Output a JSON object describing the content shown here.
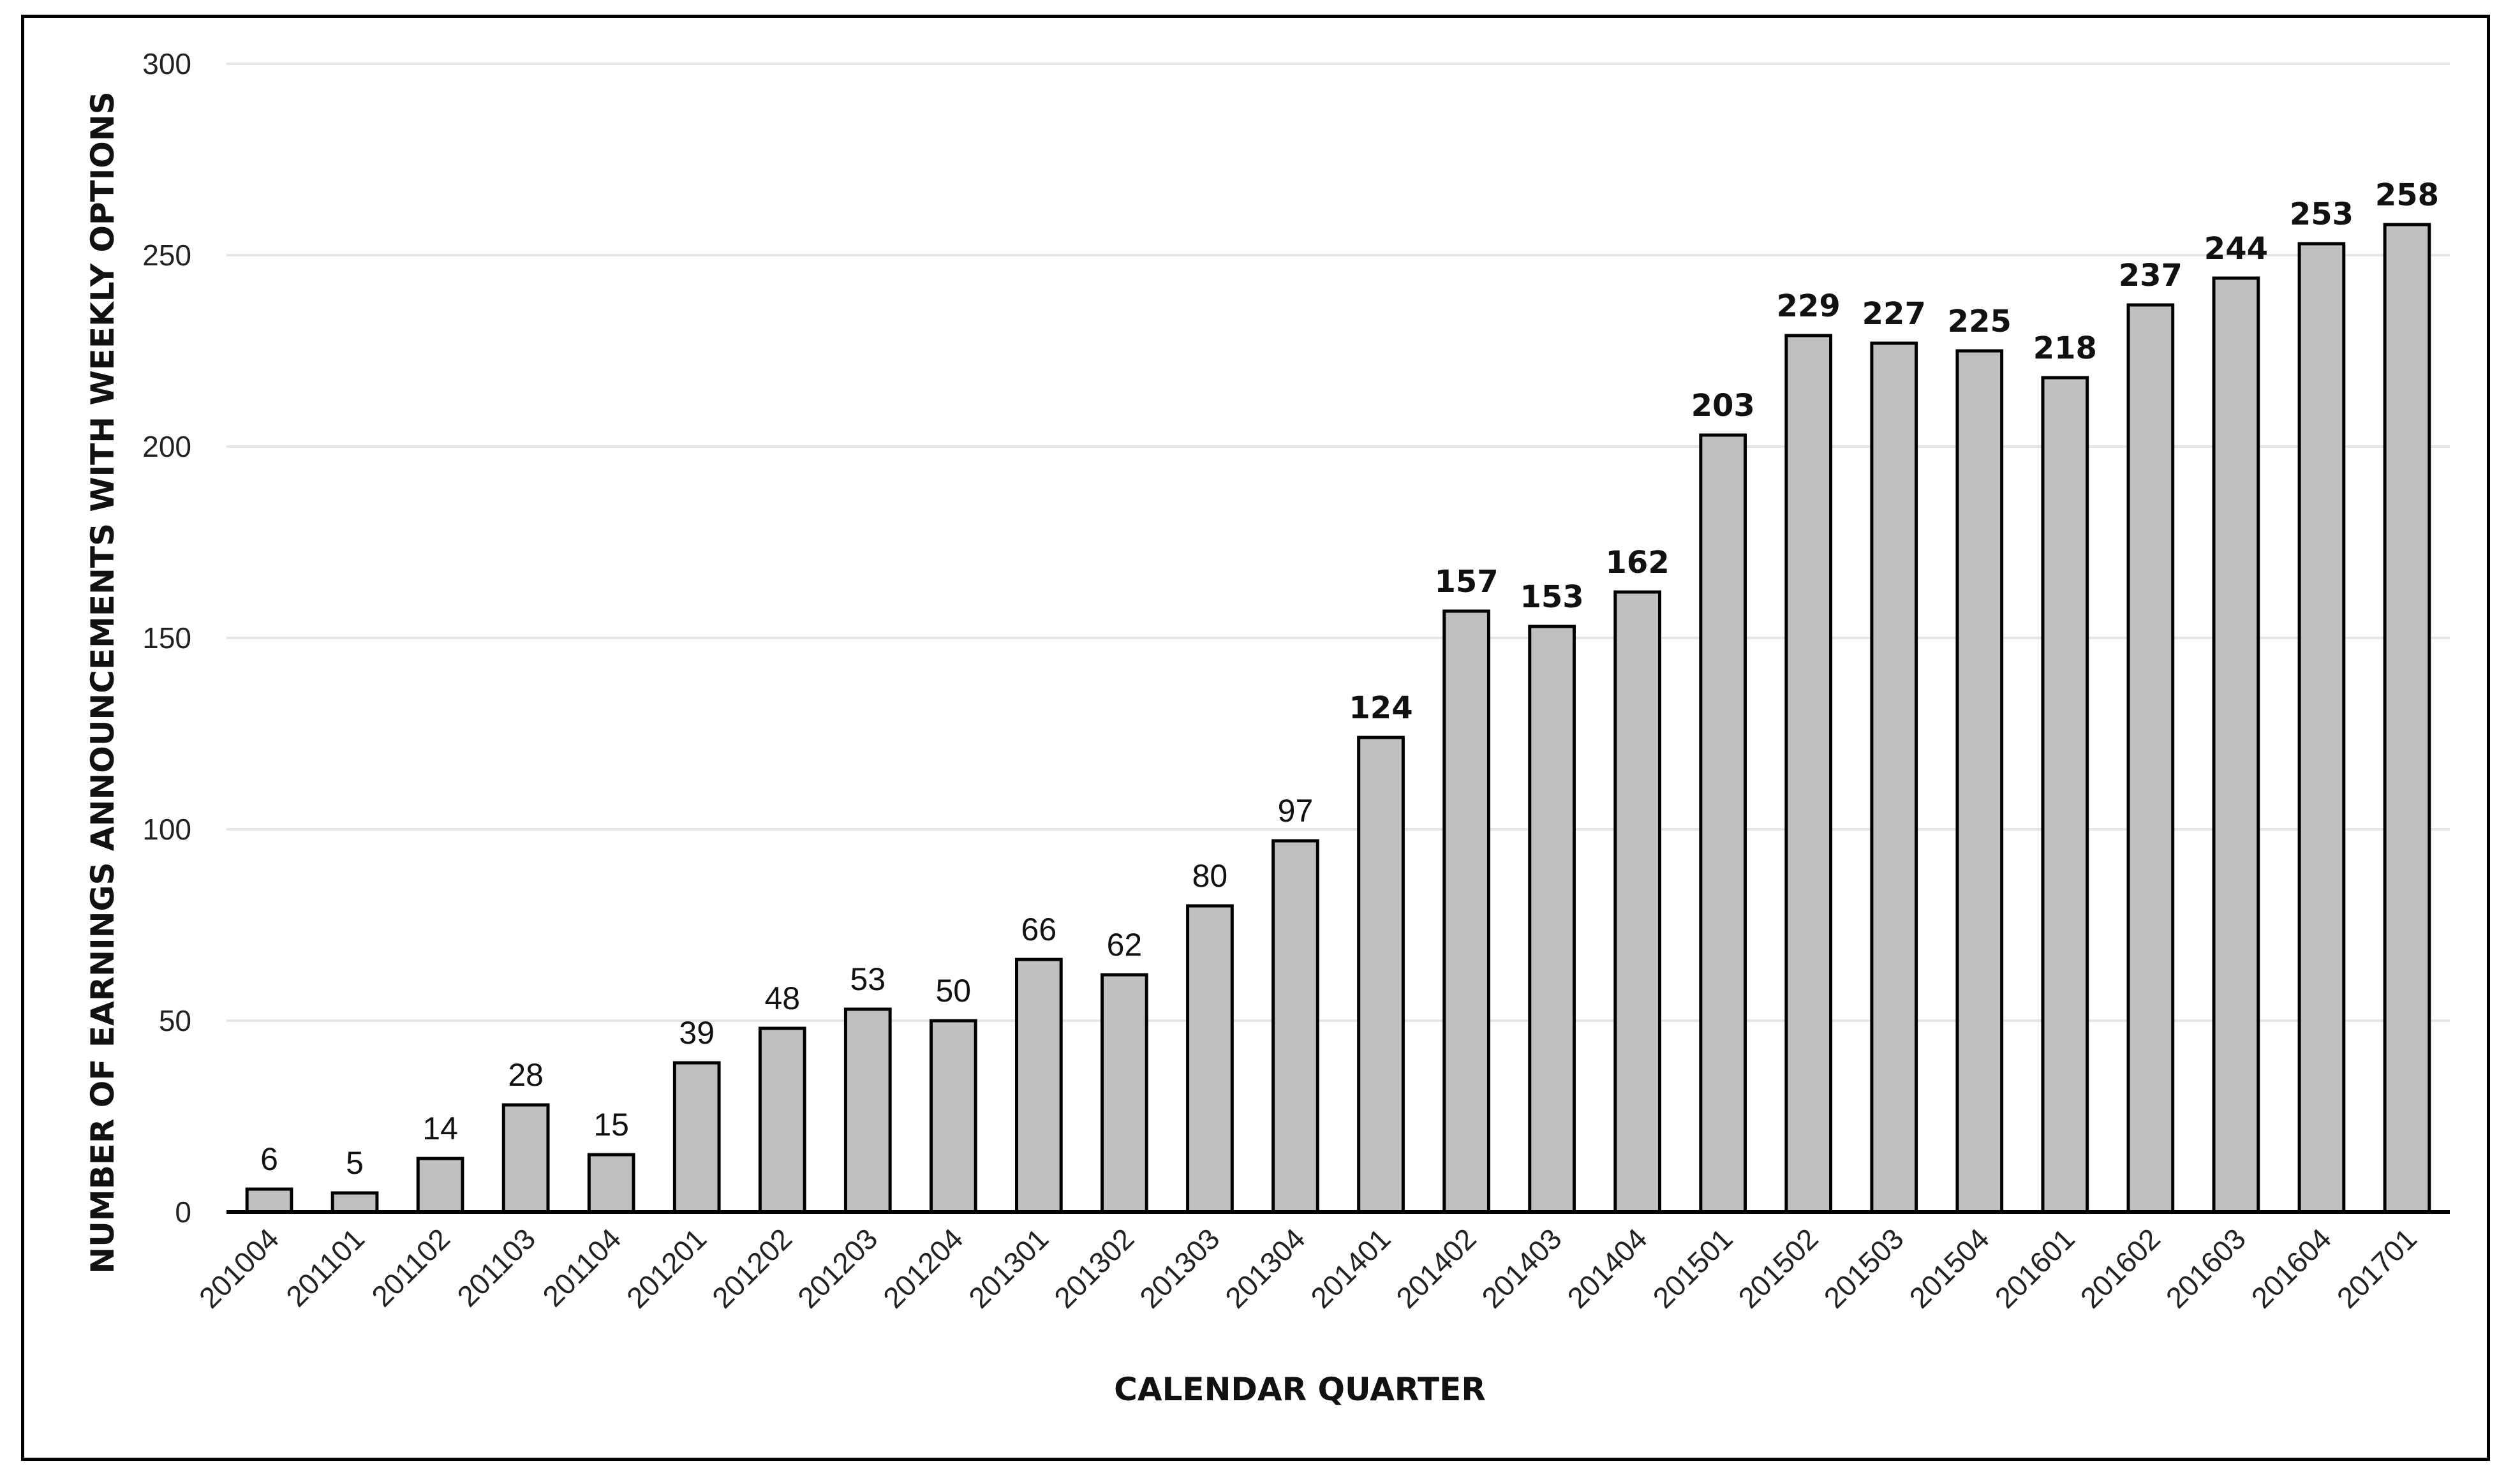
{
  "chart_data": {
    "type": "bar",
    "xlabel": "CALENDAR QUARTER",
    "ylabel": "NUMBER OF EARNINGS ANNOUNCEMENTS WITH WEEKLY OPTIONS",
    "ylim": [
      0,
      300
    ],
    "yticks": [
      "0",
      "50",
      "100",
      "150",
      "200",
      "250",
      "300"
    ],
    "grid": true,
    "legend": "none",
    "categories": [
      "201004",
      "201101",
      "201102",
      "201103",
      "201104",
      "201201",
      "201202",
      "201203",
      "201204",
      "201301",
      "201302",
      "201303",
      "201304",
      "201401",
      "201402",
      "201403",
      "201404",
      "201501",
      "201502",
      "201503",
      "201504",
      "201601",
      "201602",
      "201603",
      "201604",
      "201701"
    ],
    "values": [
      6,
      5,
      14,
      28,
      15,
      39,
      48,
      53,
      50,
      66,
      62,
      80,
      97,
      124,
      157,
      153,
      162,
      203,
      229,
      227,
      225,
      218,
      237,
      244,
      253,
      258
    ],
    "data_labels": [
      "6",
      "5",
      "14",
      "28",
      "15",
      "39",
      "48",
      "53",
      "50",
      "66",
      "62",
      "80",
      "97",
      "124",
      "157",
      "153",
      "162",
      "203",
      "229",
      "227",
      "225",
      "218",
      "237",
      "244",
      "253",
      "258"
    ],
    "bold_labels_from_value": 100,
    "colors": {
      "bar_fill": "#c0c0c0",
      "bar_stroke": "#000000",
      "grid": "#e6e6e6",
      "axis": "#000000"
    }
  }
}
